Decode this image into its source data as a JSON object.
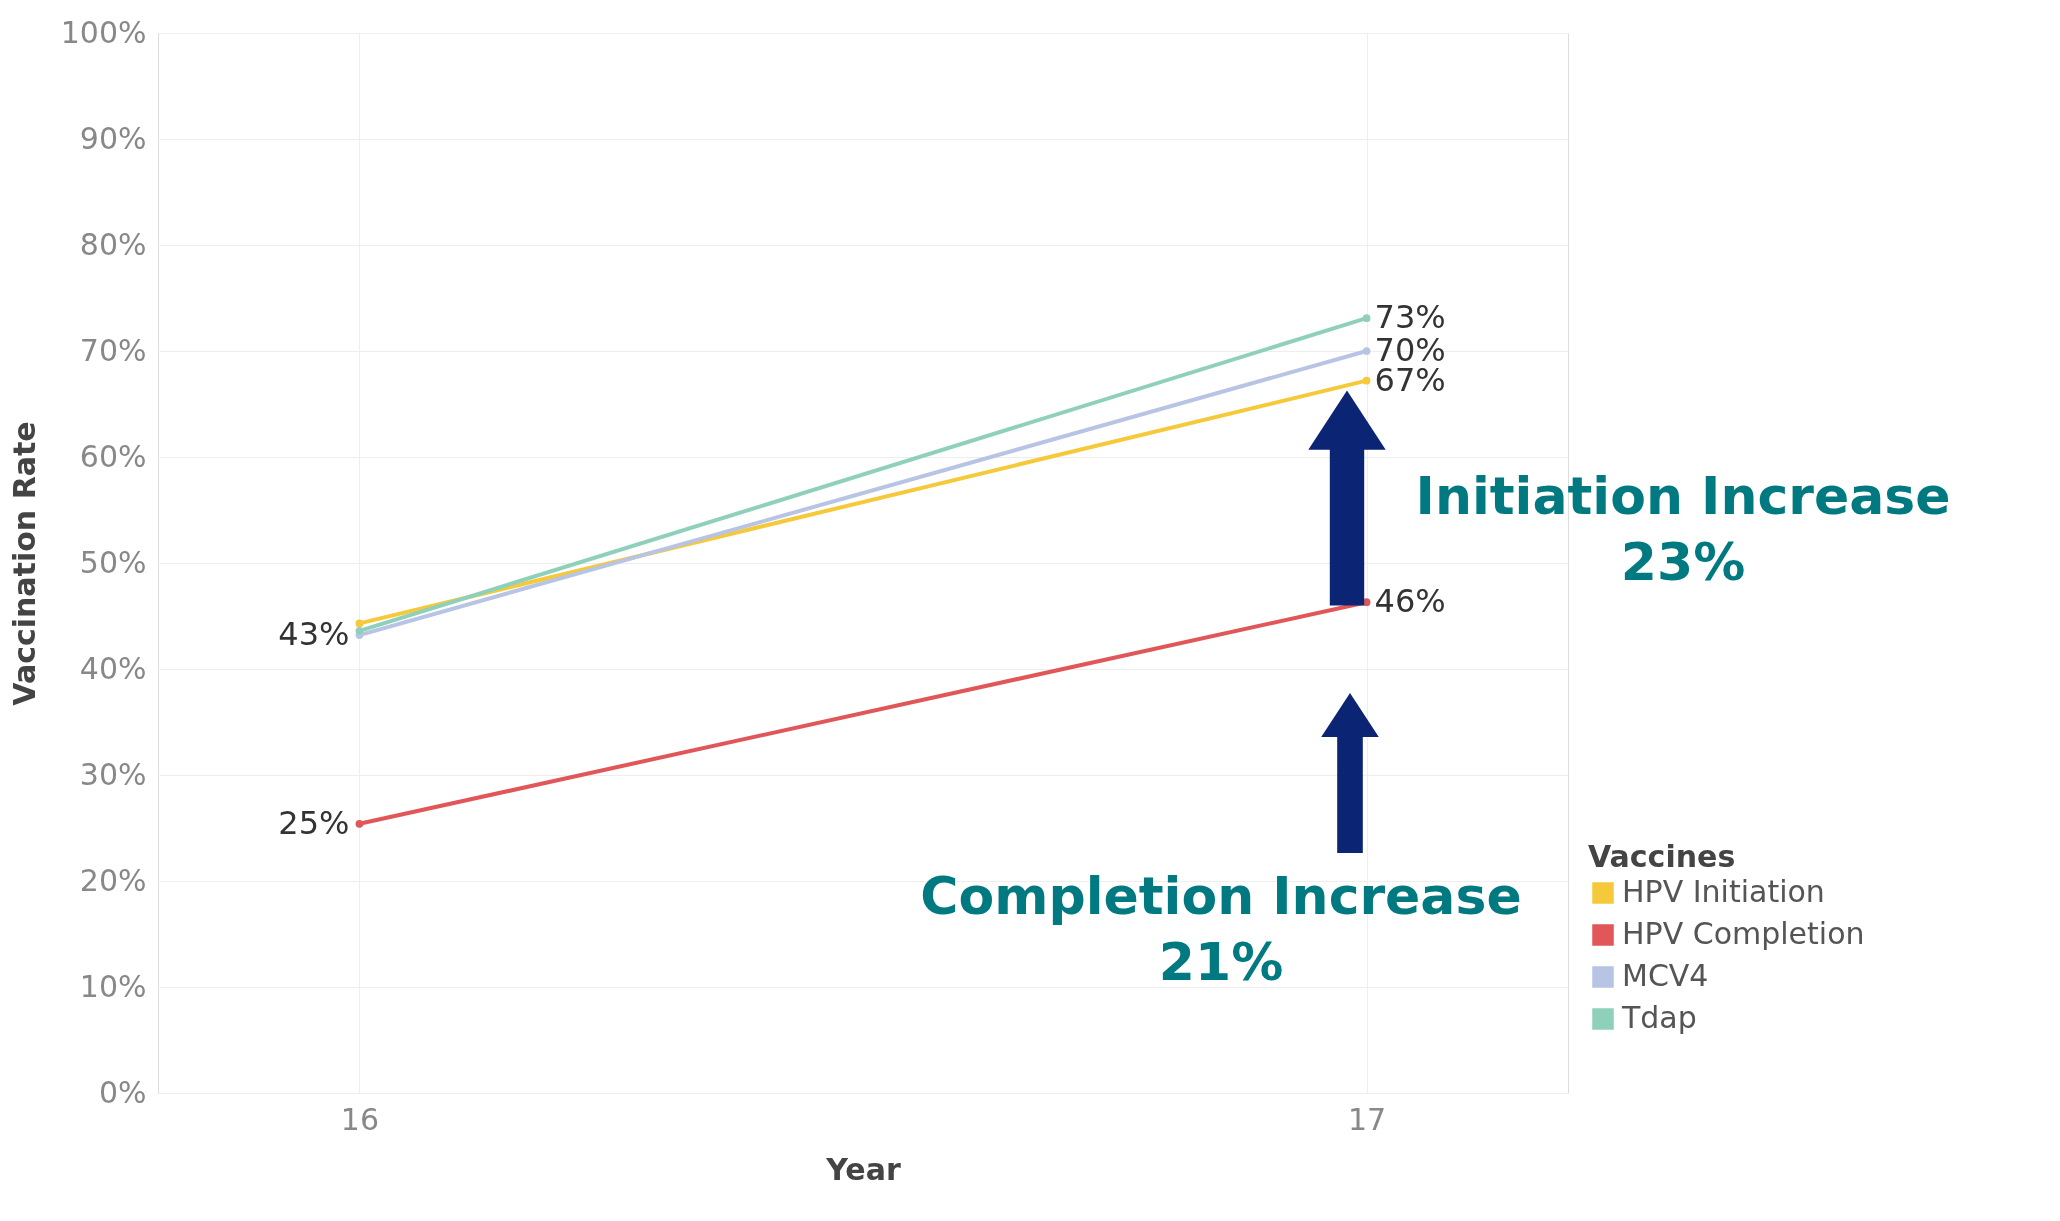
{
  "chart_data": {
    "type": "line",
    "xlabel": "Year",
    "ylabel": "Vaccination Rate",
    "legend_title": "Vaccines",
    "x": [
      16,
      17
    ],
    "series": [
      {
        "name": "HPV Initiation",
        "color": "#f5c93a",
        "values": [
          44.3,
          67.2
        ],
        "value_labels": [
          null,
          "67%"
        ]
      },
      {
        "name": "HPV Completion",
        "color": "#e15759",
        "values": [
          25.4,
          46.3
        ],
        "value_labels": [
          "25%",
          "46%"
        ]
      },
      {
        "name": "MCV4",
        "color": "#b7c4e4",
        "values": [
          43.2,
          70.0
        ],
        "value_labels": [
          "43%",
          "70%"
        ]
      },
      {
        "name": "Tdap",
        "color": "#8fd0bb",
        "values": [
          43.6,
          73.1
        ],
        "value_labels": [
          null,
          "73%"
        ]
      }
    ],
    "xlim": [
      15.8,
      17.2
    ],
    "xticks": [
      16,
      17
    ],
    "ylim": [
      0,
      100
    ],
    "yticks": [
      {
        "value": 0,
        "label": "0%"
      },
      {
        "value": 10,
        "label": "10%"
      },
      {
        "value": 20,
        "label": "20%"
      },
      {
        "value": 30,
        "label": "30%"
      },
      {
        "value": 40,
        "label": "40%"
      },
      {
        "value": 50,
        "label": "50%"
      },
      {
        "value": 60,
        "label": "60%"
      },
      {
        "value": 70,
        "label": "70%"
      },
      {
        "value": 80,
        "label": "80%"
      },
      {
        "value": 90,
        "label": "90%"
      },
      {
        "value": 100,
        "label": "100%"
      }
    ],
    "annotations": [
      "Initiation Increase\n23%",
      "Completion Increase\n21%"
    ],
    "grid": true,
    "legend": "bottom right",
    "marker": "circle",
    "line_style": "solid"
  }
}
